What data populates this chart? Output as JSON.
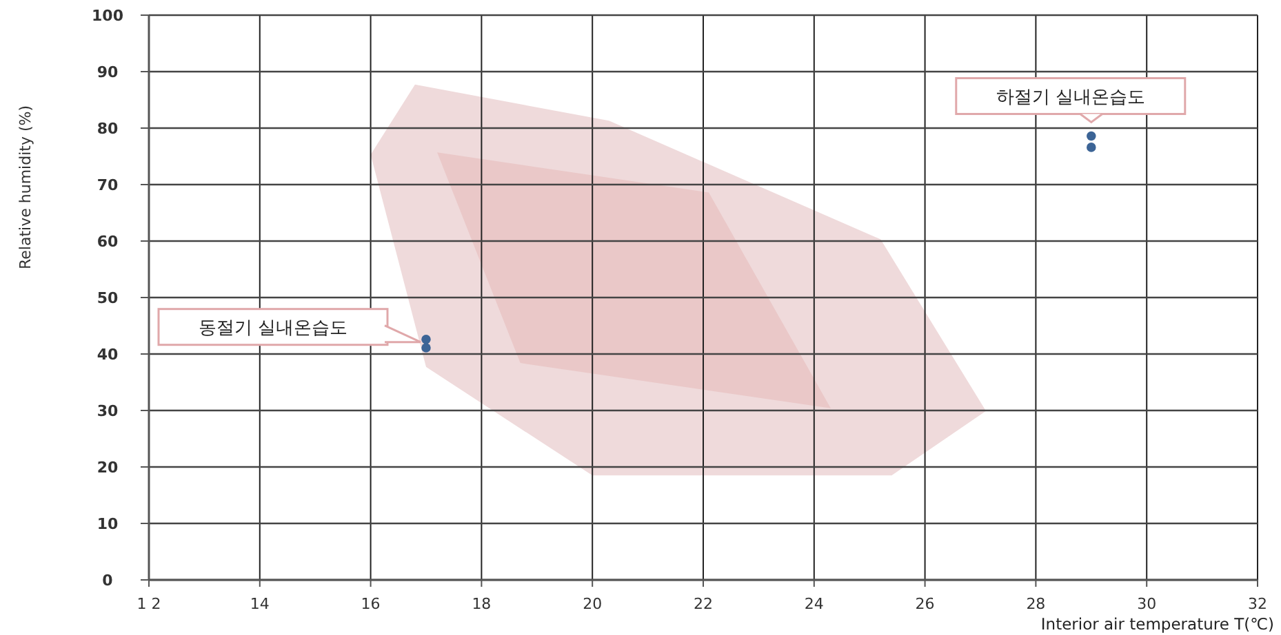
{
  "chart_data": {
    "type": "scatter",
    "xlabel": "Interior air temperature  T(℃)",
    "ylabel": "Relative humidity (%)",
    "xlim": [
      12,
      32
    ],
    "xticks": [
      {
        "value": 12,
        "label": "1 2"
      },
      14,
      16,
      18,
      20,
      22,
      24,
      26,
      28,
      30,
      32
    ],
    "ylim": [
      0,
      100
    ],
    "yticks": [
      0,
      10,
      20,
      30,
      40,
      50,
      60,
      70,
      80,
      90,
      100
    ],
    "grid": true,
    "series": [
      {
        "type": "area",
        "color": "#efdadb",
        "x": [
          16.0,
          16.8,
          20.3,
          25.2,
          27.1,
          25.4,
          20.0,
          17.0,
          16.0
        ],
        "values": [
          75.3,
          87.7,
          81.3,
          60.3,
          29.9,
          18.5,
          18.5,
          37.7,
          75.3
        ]
      },
      {
        "type": "area",
        "color": "#eac8c8",
        "x": [
          17.2,
          22.1,
          24.3,
          18.7,
          17.2
        ],
        "values": [
          75.7,
          68.6,
          30.4,
          38.4,
          75.7
        ]
      },
      {
        "marker": "circle",
        "color": "#3c6496",
        "x": [
          17,
          17,
          29,
          29
        ],
        "values": [
          42.6,
          41.1,
          78.6,
          76.6
        ]
      }
    ],
    "annotations": [
      "동절기 실내온습도",
      "하절기 실내온습도"
    ]
  }
}
